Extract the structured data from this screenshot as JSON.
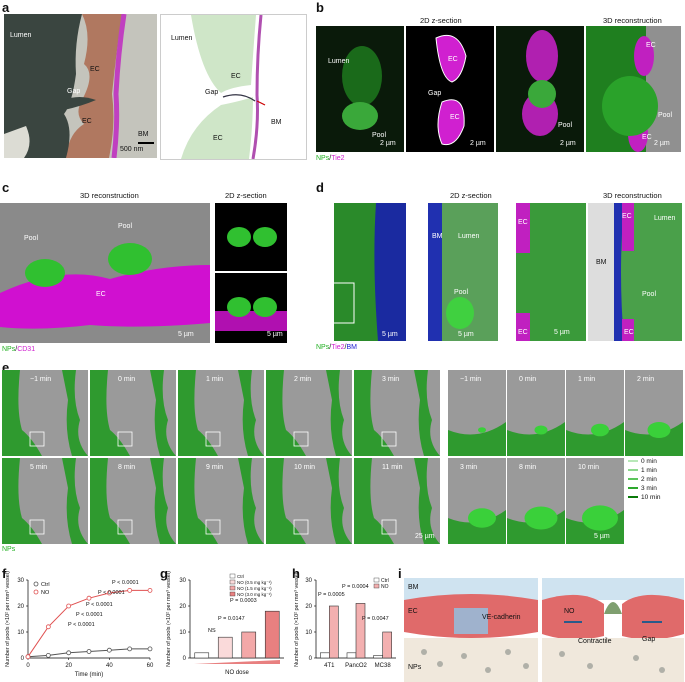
{
  "panels": {
    "a": "a",
    "b": "b",
    "c": "c",
    "d": "d",
    "e": "e",
    "f": "f",
    "g": "g",
    "h": "h",
    "i": "i"
  },
  "panel_a": {
    "em_labels": [
      "Lumen",
      "EC",
      "Gap",
      "EC",
      "BM"
    ],
    "scale": "500 nm",
    "schematic_labels": [
      "Lumen",
      "EC",
      "Gap",
      "EC",
      "BM"
    ]
  },
  "panel_b": {
    "header_2d": "2D z-section",
    "header_3d": "3D reconstruction",
    "img_labels": [
      "Lumen",
      "Pool",
      "EC",
      "Gap",
      "EC",
      "Pool",
      "EC",
      "EC",
      "Pool"
    ],
    "scales": [
      "2 µm",
      "2 µm",
      "2 µm",
      "2 µm"
    ],
    "legend_np": "NPs",
    "legend_sep": "/",
    "legend_marker": "Tie2"
  },
  "panel_c": {
    "header_3d": "3D reconstruction",
    "header_2d": "2D z-section",
    "labels": [
      "Pool",
      "Pool",
      "EC"
    ],
    "scales": [
      "5 µm",
      "5 µm"
    ],
    "legend_np": "NPs",
    "legend_sep": "/",
    "legend_marker": "CD31"
  },
  "panel_d": {
    "header_2d": "2D z-section",
    "header_3d": "3D reconstruction",
    "labels": [
      "BM",
      "Lumen",
      "Pool",
      "EC",
      "EC",
      "EC",
      "Lumen",
      "BM",
      "Pool",
      "EC"
    ],
    "scales": [
      "5 µm",
      "5 µm",
      "5 µm"
    ],
    "legend_np": "NPs",
    "legend_sep1": "/",
    "legend_tie2": "Tie2",
    "legend_sep2": "/",
    "legend_bm": "BM"
  },
  "panel_e": {
    "row1": [
      "−1 min",
      "0 min",
      "1 min",
      "2 min",
      "3 min"
    ],
    "row2": [
      "5 min",
      "8 min",
      "9 min",
      "10 min",
      "11 min"
    ],
    "zoom1": [
      "−1 min",
      "0 min",
      "1 min",
      "2 min"
    ],
    "zoom2": [
      "3 min",
      "8 min",
      "10 min"
    ],
    "legend": [
      "0 min",
      "1 min",
      "2 min",
      "3 min",
      "10 min"
    ],
    "scale1": "25 µm",
    "scale2": "5 µm",
    "legend_np": "NPs",
    "legend_colors": [
      "#b8e8b8",
      "#8fd88f",
      "#5cc55c",
      "#2ea82e",
      "#0a7a0a"
    ]
  },
  "chart_data": [
    {
      "type": "line",
      "ylabel": "Number of pools (×10² per mm³ vessel)",
      "xlabel": "Time (min)",
      "xlim": [
        0,
        60
      ],
      "ylim": [
        0,
        30
      ],
      "xticks": [
        0,
        20,
        40,
        60
      ],
      "yticks": [
        0,
        10,
        20,
        30
      ],
      "series": [
        {
          "name": "Ctrl",
          "color": "#555555",
          "x": [
            0,
            10,
            20,
            30,
            40,
            50,
            60
          ],
          "y": [
            0.5,
            1,
            2,
            2.5,
            3,
            3.5,
            3.5
          ]
        },
        {
          "name": "NO",
          "color": "#e05050",
          "x": [
            0,
            10,
            20,
            30,
            40,
            50,
            60
          ],
          "y": [
            0.5,
            12,
            20,
            23,
            25,
            26,
            26
          ]
        }
      ],
      "annotations": [
        "P < 0.0001",
        "P < 0.0001",
        "P < 0.0001",
        "P < 0.0001",
        "P < 0.0001"
      ]
    },
    {
      "type": "bar",
      "ylabel": "Number of pools (×10² per mm³ vessel)",
      "ylim": [
        0,
        30
      ],
      "yticks": [
        0,
        10,
        20,
        30
      ],
      "categories": [
        "Ctrl",
        "NO (0.5 mg kg⁻¹)",
        "NO (1.5 mg kg⁻¹)",
        "NO (3.0 mg kg⁻¹)"
      ],
      "values": [
        2,
        8,
        10,
        18
      ],
      "colors": [
        "#ffffff",
        "#fadada",
        "#f3a8a8",
        "#e88080"
      ],
      "xlabel": "NO dose",
      "annotations": [
        "P = 0.0003",
        "P = 0.0147",
        "NS"
      ]
    },
    {
      "type": "bar",
      "ylabel": "Number of pools (×10² per mm³ vessel)",
      "ylim": [
        0,
        30
      ],
      "yticks": [
        0,
        10,
        20,
        30
      ],
      "categories": [
        "4T1",
        "PancO2",
        "MC38"
      ],
      "series": [
        {
          "name": "Ctrl",
          "values": [
            2,
            2,
            1
          ],
          "color": "#ffffff"
        },
        {
          "name": "NO",
          "values": [
            20,
            21,
            10
          ],
          "color": "#f3b0b0"
        }
      ],
      "annotations": [
        "P = 0.0005",
        "P = 0.0004",
        "P = 0.0047"
      ]
    }
  ],
  "panel_i": {
    "left": [
      "BM",
      "EC",
      "VE-cadherin",
      "NPs"
    ],
    "right": [
      "NO",
      "Contractile",
      "Gap"
    ]
  }
}
